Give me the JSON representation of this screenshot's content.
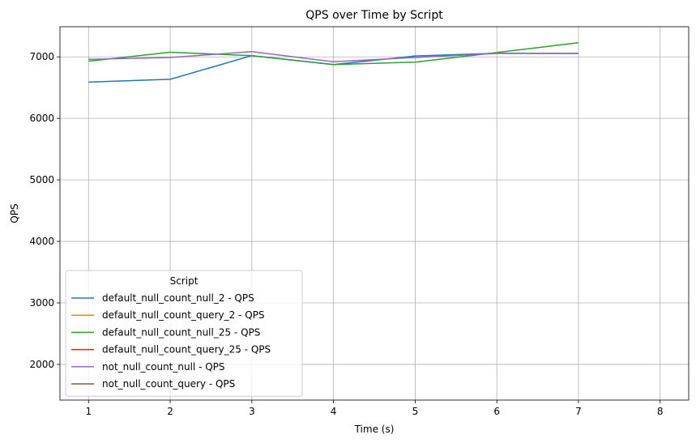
{
  "chart_data": {
    "type": "line",
    "title": "QPS over Time by Script",
    "xlabel": "Time (s)",
    "ylabel": "QPS",
    "xlim": [
      0.65,
      8.35
    ],
    "ylim": [
      1420,
      7490
    ],
    "xticks": [
      1,
      2,
      3,
      4,
      5,
      6,
      7,
      8
    ],
    "yticks": [
      2000,
      3000,
      4000,
      5000,
      6000,
      7000
    ],
    "grid": true,
    "legend": {
      "title": "Script",
      "placement": "lower-left"
    },
    "series": [
      {
        "name": "default_null_count_null_2 - QPS",
        "color": "#1f77b4",
        "x": [
          1,
          2,
          3,
          4,
          5,
          6,
          7
        ],
        "y": [
          6590,
          6635,
          7020,
          6875,
          7015,
          7060,
          7055
        ]
      },
      {
        "name": "default_null_count_query_2 - QPS",
        "color": "#ff7f0e",
        "x": [],
        "y": []
      },
      {
        "name": "default_null_count_null_25 - QPS",
        "color": "#2ca02c",
        "x": [
          1,
          2,
          3,
          4,
          5,
          6,
          7
        ],
        "y": [
          6930,
          7075,
          7020,
          6875,
          6915,
          7070,
          7230
        ]
      },
      {
        "name": "default_null_count_query_25 - QPS",
        "color": "#d62728",
        "x": [],
        "y": []
      },
      {
        "name": "not_null_count_null - QPS",
        "color": "#9467bd",
        "x": [
          1,
          2,
          3,
          4,
          5,
          6,
          7
        ],
        "y": [
          6960,
          6990,
          7085,
          6920,
          6990,
          7055,
          7055
        ]
      },
      {
        "name": "not_null_count_query - QPS",
        "color": "#8c564b",
        "x": [],
        "y": []
      }
    ]
  }
}
